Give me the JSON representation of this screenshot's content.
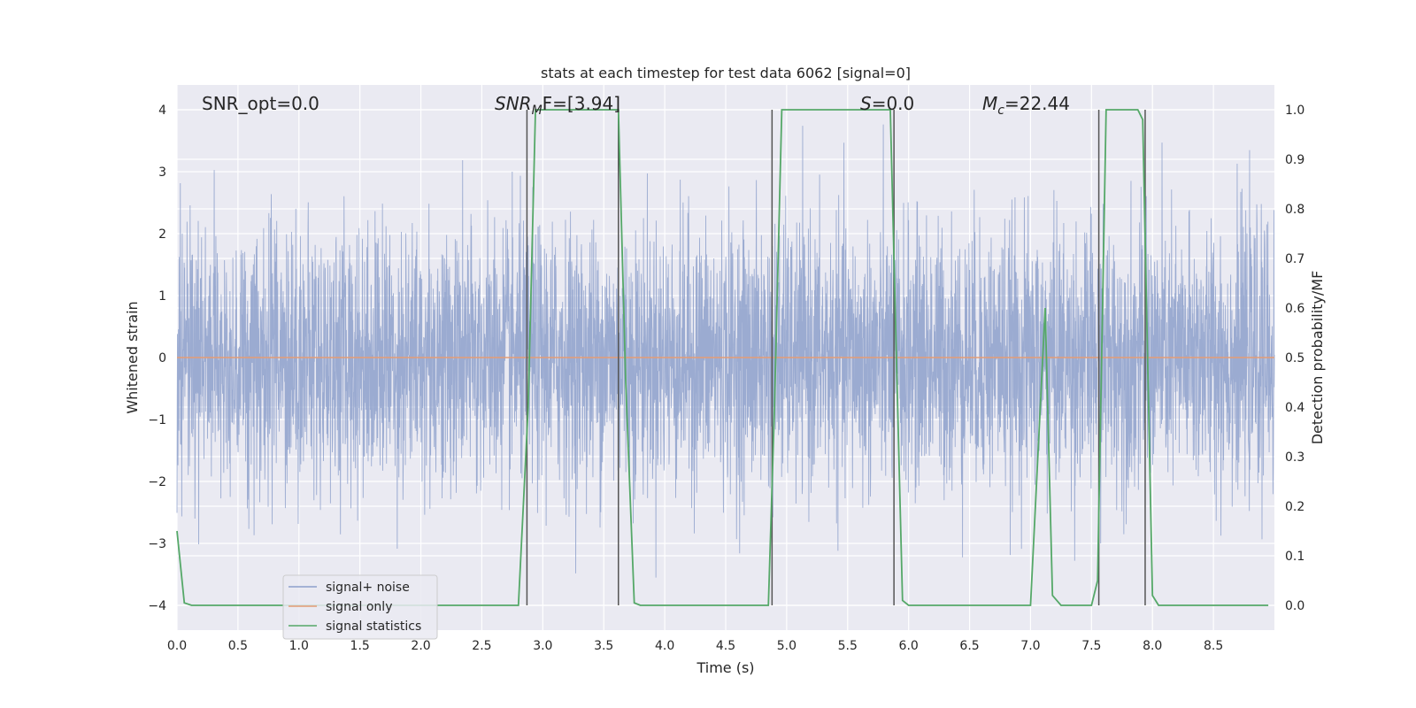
{
  "chart_data": {
    "type": "line",
    "title": "stats at each timestep for test data 6062 [signal=0]",
    "xlabel": "Time (s)",
    "ylabel": "Whitened strain",
    "ylabel_right": "Detection probability/MF",
    "xlim": [
      0,
      9
    ],
    "ylim": [
      -4.4,
      4.4
    ],
    "ylim_right": [
      -0.05,
      1.05
    ],
    "x_ticks": [
      "0.0",
      "0.5",
      "1.0",
      "1.5",
      "2.0",
      "2.5",
      "3.0",
      "3.5",
      "4.0",
      "4.5",
      "5.0",
      "5.5",
      "6.0",
      "6.5",
      "7.0",
      "7.5",
      "8.0",
      "8.5"
    ],
    "y_ticks": [
      "4",
      "3",
      "2",
      "1",
      "0",
      "−1",
      "−2",
      "−3",
      "−4"
    ],
    "y_ticks_right": [
      "1.0",
      "0.9",
      "0.8",
      "0.7",
      "0.6",
      "0.5",
      "0.4",
      "0.3",
      "0.2",
      "0.1",
      "0.0"
    ],
    "grid": true,
    "legend_position": "bottom-left",
    "annotations": {
      "snr_opt": "SNR_opt=0.0",
      "snr_mf_main": "SNR",
      "snr_mf_sub": "M",
      "snr_mf_rest": "F=[3.94]",
      "s_main": "S",
      "s_rest": "=0.0",
      "mc_main": "M",
      "mc_sub": "c",
      "mc_rest": "=22.44"
    },
    "series": [
      {
        "name": "signal+ noise",
        "color": "#8da0cb",
        "description": "dense whitened noise trace, roughly within [-2.5, 2.5] with spikes to about ±4",
        "amplitude_envelope": [
          -4.0,
          4.0
        ]
      },
      {
        "name": "signal only",
        "color": "#e39b74",
        "x": [
          0.0,
          9.0
        ],
        "y": [
          0.0,
          0.0
        ]
      },
      {
        "name": "signal statistics",
        "color": "#55a868",
        "axis": "right",
        "x": [
          0.0,
          0.06,
          0.12,
          2.8,
          2.88,
          2.94,
          3.62,
          3.68,
          3.75,
          3.8,
          4.85,
          4.9,
          4.96,
          5.85,
          5.9,
          5.95,
          6.0,
          7.0,
          7.12,
          7.18,
          7.25,
          7.5,
          7.55,
          7.62,
          7.88,
          7.92,
          8.0,
          8.05,
          8.95
        ],
        "y": [
          0.15,
          0.005,
          0.0,
          0.0,
          0.4,
          1.0,
          1.0,
          0.45,
          0.005,
          0.0,
          0.0,
          0.4,
          1.0,
          1.0,
          0.5,
          0.01,
          0.0,
          0.0,
          0.6,
          0.02,
          0.0,
          0.0,
          0.05,
          1.0,
          1.0,
          0.98,
          0.02,
          0.0,
          0.0
        ]
      }
    ],
    "vertical_lines": {
      "color": "#555555",
      "x": [
        2.87,
        3.62,
        4.88,
        5.88,
        7.56,
        7.94
      ]
    }
  }
}
